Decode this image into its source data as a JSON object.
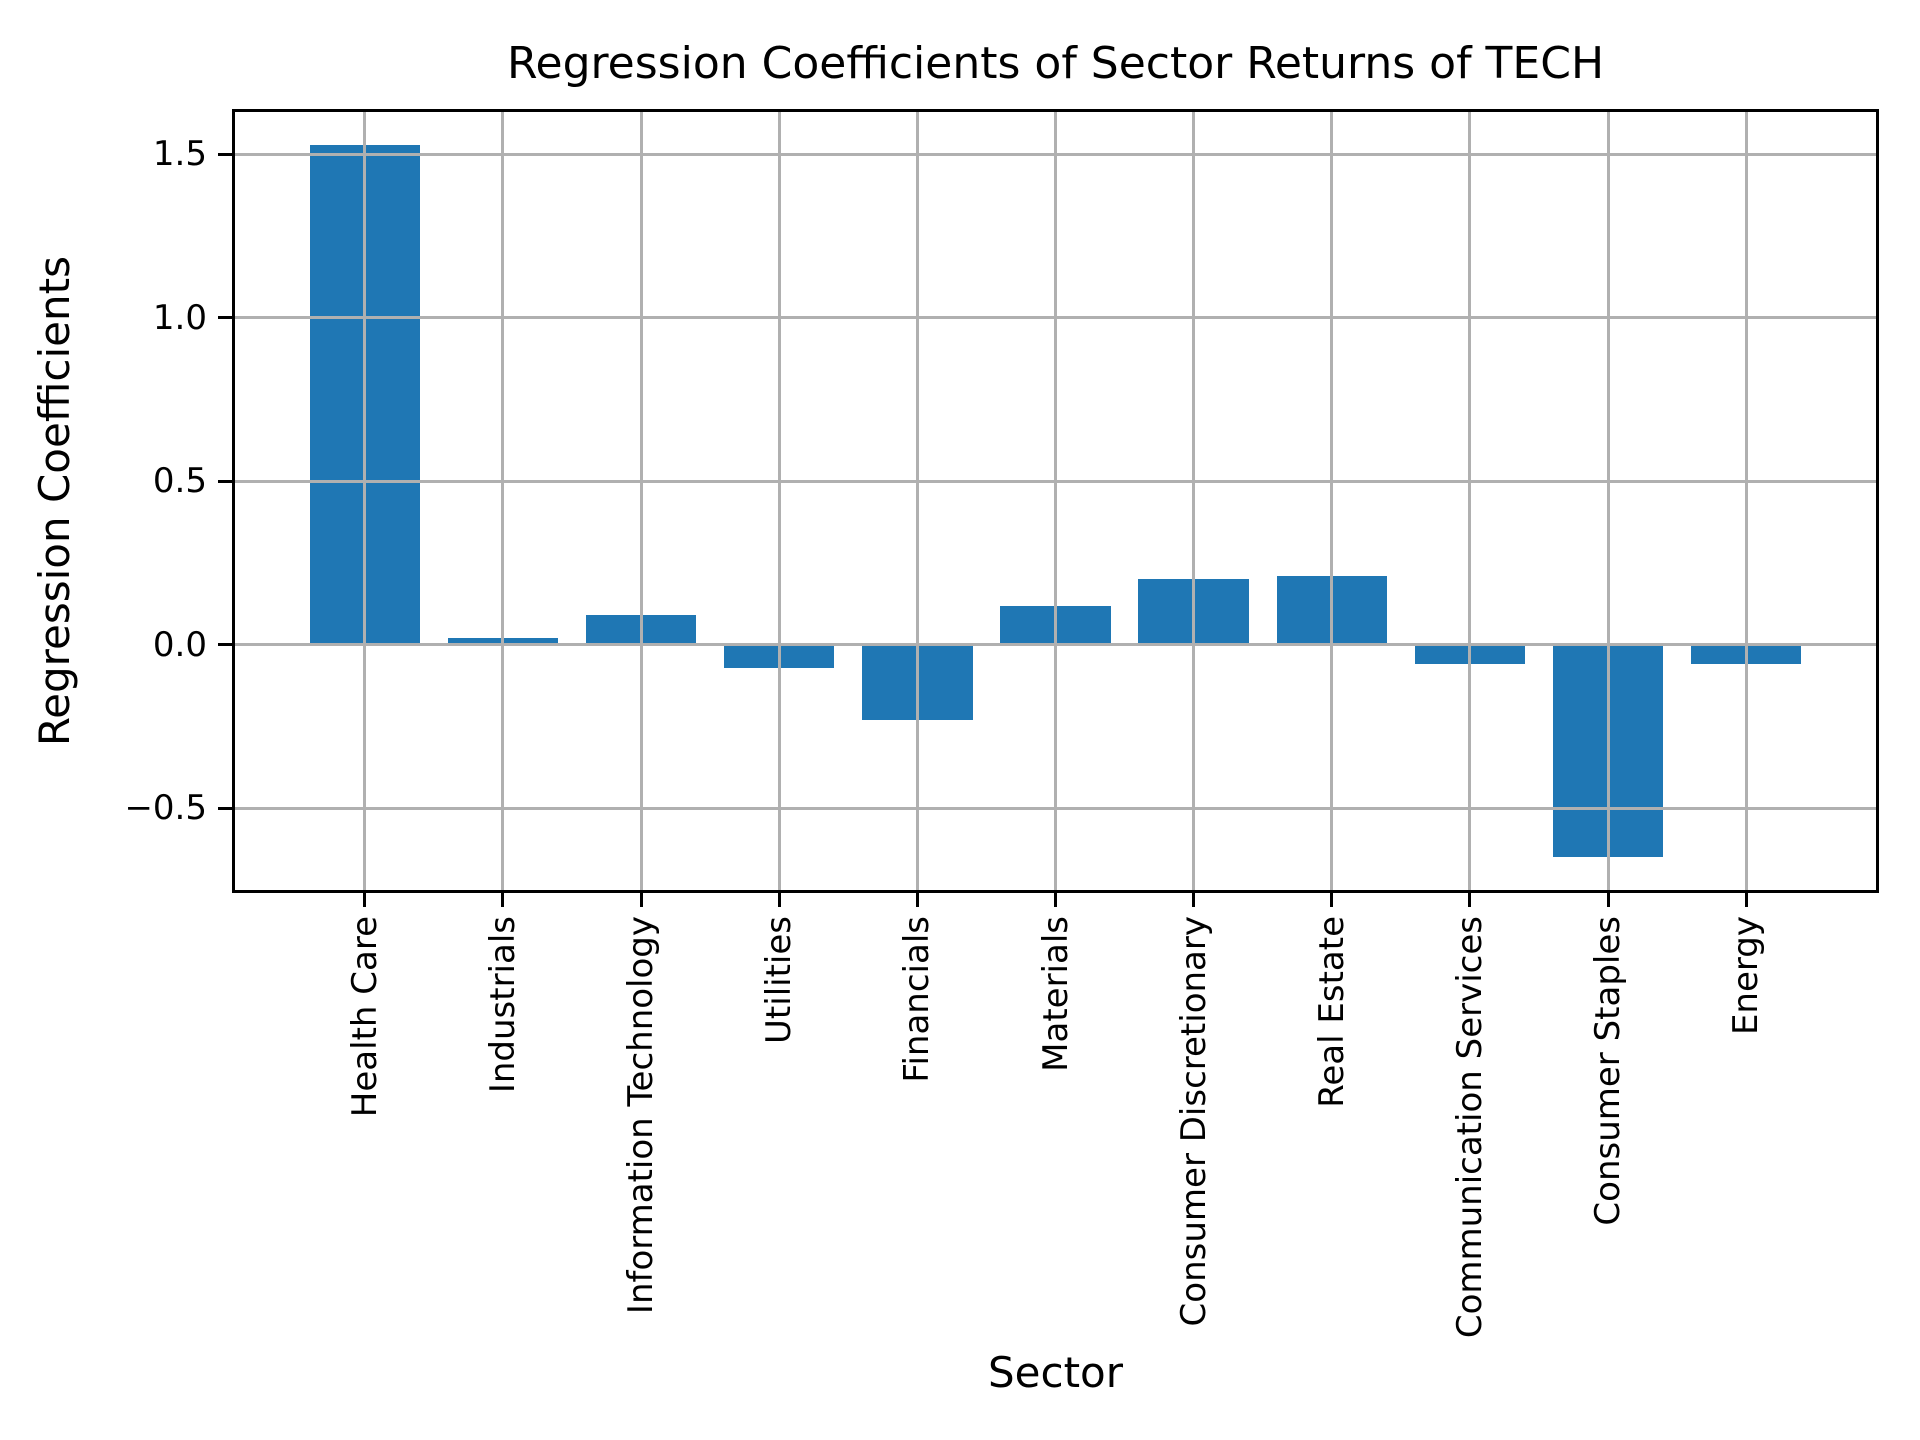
{
  "chart_data": {
    "type": "bar",
    "title": "Regression Coefficients of Sector Returns of TECH",
    "xlabel": "Sector",
    "ylabel": "Regression Coefficients",
    "categories": [
      "Health Care",
      "Industrials",
      "Information Technology",
      "Utilities",
      "Financials",
      "Materials",
      "Consumer Discretionary",
      "Real Estate",
      "Communication Services",
      "Consumer Staples",
      "Energy"
    ],
    "values": [
      1.53,
      0.02,
      0.09,
      -0.07,
      -0.23,
      0.12,
      0.2,
      0.21,
      -0.06,
      -0.65,
      -0.06
    ],
    "yticks": [
      -0.5,
      0.0,
      0.5,
      1.0,
      1.5
    ],
    "ytick_labels": [
      "−0.5",
      "0.0",
      "0.5",
      "1.0",
      "1.5"
    ],
    "ylim": [
      -0.75,
      1.63
    ],
    "xlim": [
      -0.94,
      10.94
    ],
    "bar_width": 0.8,
    "x_tick_rotation": 90,
    "grid": "on",
    "legend": "none",
    "colors": {
      "bar": "#1f77b4",
      "grid": "#b0b0b0",
      "spine": "#000000",
      "background": "#ffffff",
      "text": "#000000"
    }
  }
}
